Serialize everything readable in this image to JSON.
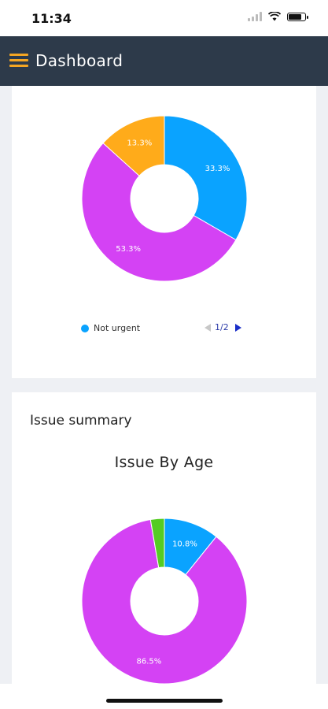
{
  "status_bar": {
    "time": "11:34"
  },
  "header": {
    "title": "Dashboard"
  },
  "urgency_card": {
    "legend_label": "Not urgent",
    "pager_text": "1/2"
  },
  "issue_card": {
    "section_title": "Issue summary",
    "chart_title": "Issue By Age"
  },
  "colors": {
    "header_bg": "#2d3a4a",
    "accent_orange": "#f5a623",
    "blue": "#0aa3ff",
    "magenta": "#d442f4",
    "green": "#55cc22"
  },
  "chart_data": [
    {
      "type": "pie",
      "title": "",
      "donut": true,
      "slices": [
        {
          "label": "33.3%",
          "value": 33.3,
          "color": "#0aa3ff"
        },
        {
          "label": "53.3%",
          "value": 53.3,
          "color": "#d442f4"
        },
        {
          "label": "13.3%",
          "value": 13.3,
          "color": "#ffab1a"
        }
      ],
      "legend": [
        {
          "name": "Not urgent",
          "color": "#0aa3ff"
        }
      ],
      "legend_position": "bottom"
    },
    {
      "type": "pie",
      "title": "Issue By Age",
      "donut": true,
      "slices": [
        {
          "label": "10.8%",
          "value": 10.8,
          "color": "#0aa3ff"
        },
        {
          "label": "86.5%",
          "value": 86.5,
          "color": "#d442f4"
        },
        {
          "label": "",
          "value": 2.7,
          "color": "#55cc22"
        }
      ]
    }
  ]
}
